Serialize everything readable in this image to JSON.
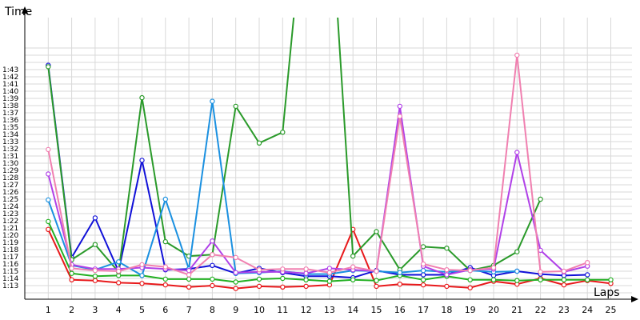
{
  "chart_data": {
    "type": "line",
    "title": "",
    "xlabel": "Laps",
    "ylabel": "Time",
    "x_ticks": [
      1,
      2,
      3,
      4,
      5,
      6,
      7,
      8,
      9,
      10,
      11,
      12,
      13,
      14,
      15,
      16,
      17,
      18,
      19,
      20,
      21,
      22,
      23,
      24,
      25
    ],
    "y_tick_labels": [
      "1:13",
      "1:14",
      "1:15",
      "1:16",
      "1:17",
      "1:18",
      "1:19",
      "1:20",
      "1:21",
      "1:22",
      "1:23",
      "1:24",
      "1:25",
      "1:26",
      "1:27",
      "1:28",
      "1:29",
      "1:30",
      "1:31",
      "1:32",
      "1:33",
      "1:34",
      "1:35",
      "1:36",
      "1:37",
      "1:38",
      "1:39",
      "1:40",
      "1:41",
      "1:42",
      "1:43"
    ],
    "y_unit": "seconds",
    "xlim": [
      0,
      25
    ],
    "ylim": [
      72,
      106
    ],
    "grid": true,
    "series": [
      {
        "color": "#e8191b",
        "values": [
          80.8,
          73.8,
          73.7,
          73.4,
          73.3,
          73.1,
          72.8,
          73.0,
          72.6,
          72.9,
          72.8,
          72.9,
          73.1,
          80.8,
          72.9,
          73.2,
          73.1,
          72.9,
          72.7,
          73.6,
          73.2,
          74.0,
          73.1,
          73.7,
          73.3
        ]
      },
      {
        "color": "#1010d8",
        "values": [
          103.6,
          76.9,
          82.4,
          75.0,
          90.4,
          75.2,
          75.3,
          75.8,
          74.7,
          75.4,
          74.8,
          74.3,
          74.3,
          74.1,
          75.1,
          74.5,
          74.5,
          74.5,
          75.5,
          74.4,
          75.0,
          74.6,
          74.4,
          74.5,
          null
        ]
      },
      {
        "color": "#22b022",
        "values": [
          81.9,
          74.7,
          74.3,
          74.4,
          74.4,
          73.9,
          73.9,
          73.9,
          73.5,
          73.9,
          74.0,
          73.8,
          73.6,
          73.8,
          73.7,
          74.4,
          73.8,
          74.3,
          73.8,
          73.8,
          73.7,
          73.8,
          73.8,
          73.8,
          73.8
        ]
      },
      {
        "color": "#2a9a2a",
        "values": [
          103.4,
          76.6,
          78.7,
          74.9,
          99.1,
          79.1,
          77.1,
          77.3,
          97.9,
          92.8,
          94.3,
          128.0,
          128.0,
          77.1,
          80.5,
          75.2,
          78.4,
          78.2,
          75.1,
          75.8,
          77.7,
          85.0,
          null,
          null,
          null
        ]
      },
      {
        "color": "#1a90e0",
        "values": [
          84.9,
          75.8,
          75.2,
          76.3,
          74.4,
          85.0,
          75.3,
          98.6,
          74.7,
          74.8,
          75.0,
          74.6,
          74.6,
          75.1,
          75.0,
          74.8,
          75.1,
          74.9,
          75.1,
          74.9,
          75.0,
          null,
          null,
          null,
          null
        ]
      },
      {
        "color": "#b040e8",
        "values": [
          88.5,
          75.9,
          75.3,
          75.3,
          75.5,
          75.3,
          75.1,
          79.2,
          74.8,
          74.9,
          74.9,
          74.7,
          75.4,
          75.2,
          75.0,
          97.9,
          75.7,
          74.5,
          75.2,
          75.3,
          91.5,
          77.9,
          74.9,
          75.7,
          null
        ]
      },
      {
        "color": "#f080b0",
        "values": [
          91.9,
          75.4,
          75.1,
          75.0,
          75.9,
          75.6,
          74.5,
          77.3,
          76.9,
          75.2,
          75.3,
          75.3,
          74.8,
          75.6,
          75.0,
          96.5,
          76.0,
          75.2,
          75.1,
          75.5,
          105.0,
          74.9,
          75.0,
          76.2,
          null
        ]
      }
    ]
  }
}
